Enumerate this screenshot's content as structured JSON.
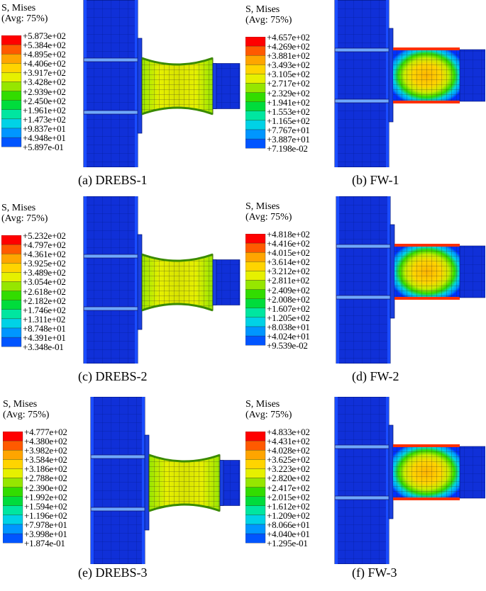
{
  "legend_title_line1": "S, Mises",
  "legend_title_line2": "(Avg: 75%)",
  "colors": [
    "#ff0000",
    "#ff5a00",
    "#ffa500",
    "#ffd400",
    "#e6f000",
    "#96e600",
    "#32dc00",
    "#00dc3c",
    "#00e6a0",
    "#00d2e6",
    "#0096ff",
    "#0055ff",
    "#0000ff"
  ],
  "panels": [
    {
      "id": "a",
      "caption": "(a) DREBS-1",
      "type": "drebs",
      "legend": [
        "+5.873e+02",
        "+5.384e+02",
        "+4.895e+02",
        "+4.406e+02",
        "+3.917e+02",
        "+3.428e+02",
        "+2.939e+02",
        "+2.450e+02",
        "+1.961e+02",
        "+1.473e+02",
        "+9.837e+01",
        "+4.948e+01",
        "+5.897e-01"
      ]
    },
    {
      "id": "b",
      "caption": "(b) FW-1",
      "type": "fw",
      "legend": [
        "+4.657e+02",
        "+4.269e+02",
        "+3.881e+02",
        "+3.493e+02",
        "+3.105e+02",
        "+2.717e+02",
        "+2.329e+02",
        "+1.941e+02",
        "+1.553e+02",
        "+1.165e+02",
        "+7.767e+01",
        "+3.887e+01",
        "+7.198e-02"
      ]
    },
    {
      "id": "c",
      "caption": "(c) DREBS-2",
      "type": "drebs",
      "legend": [
        "+5.232e+02",
        "+4.797e+02",
        "+4.361e+02",
        "+3.925e+02",
        "+3.489e+02",
        "+3.054e+02",
        "+2.618e+02",
        "+2.182e+02",
        "+1.746e+02",
        "+1.311e+02",
        "+8.748e+01",
        "+4.391e+01",
        "+3.348e-01"
      ]
    },
    {
      "id": "d",
      "caption": "(d) FW-2",
      "type": "fw",
      "legend": [
        "+4.818e+02",
        "+4.416e+02",
        "+4.015e+02",
        "+3.614e+02",
        "+3.212e+02",
        "+2.811e+02",
        "+2.409e+02",
        "+2.008e+02",
        "+1.607e+02",
        "+1.205e+02",
        "+8.038e+01",
        "+4.024e+01",
        "+9.539e-02"
      ]
    },
    {
      "id": "e",
      "caption": "(e) DREBS-3",
      "type": "drebs",
      "legend": [
        "+4.777e+02",
        "+4.380e+02",
        "+3.982e+02",
        "+3.584e+02",
        "+3.186e+02",
        "+2.788e+02",
        "+2.390e+02",
        "+1.992e+02",
        "+1.594e+02",
        "+1.196e+02",
        "+7.978e+01",
        "+3.998e+01",
        "+1.874e-01"
      ]
    },
    {
      "id": "f",
      "caption": "(f) FW-3",
      "type": "fw",
      "legend": [
        "+4.833e+02",
        "+4.431e+02",
        "+4.028e+02",
        "+3.625e+02",
        "+3.223e+02",
        "+2.820e+02",
        "+2.417e+02",
        "+2.015e+02",
        "+1.612e+02",
        "+1.209e+02",
        "+8.066e+01",
        "+4.040e+01",
        "+1.295e-01"
      ]
    }
  ]
}
